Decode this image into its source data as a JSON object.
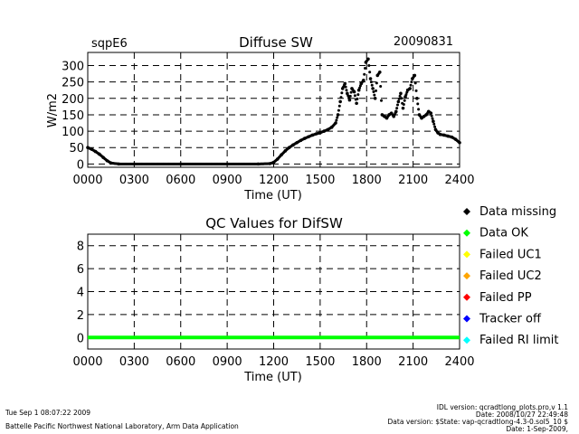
{
  "header": {
    "site": "sqpE6",
    "title": "Diffuse SW",
    "date": "20090831"
  },
  "footer": {
    "timestamp": "Tue Sep  1 08:07:22 2009",
    "lab": "Battelle Pacific Northwest National Laboratory, Arm Data Application",
    "idl_version": "IDL version: qcradtlong_plots.pro,v 1.1",
    "date_line": "Date: 2008/10/27 22:49:48",
    "data_version": "Data version: $State: vap-qcradtlong-4.3-0.sol5_10 $",
    "file_date": "Date: 1-Sep-2009,"
  },
  "legend": {
    "items": [
      {
        "label": "Data missing",
        "color": "#000000"
      },
      {
        "label": "Data OK",
        "color": "#00ff00"
      },
      {
        "label": "Failed UC1",
        "color": "#ffff00"
      },
      {
        "label": "Failed UC2",
        "color": "#ffa500"
      },
      {
        "label": "Failed PP",
        "color": "#ff0000"
      },
      {
        "label": "Tracker off",
        "color": "#0000ff"
      },
      {
        "label": "Failed RI limit",
        "color": "#00ffff"
      }
    ]
  },
  "chart_data": [
    {
      "type": "scatter",
      "title": "Diffuse SW",
      "xlabel": "Time (UT)",
      "ylabel": "W/m2",
      "xlim": [
        0,
        24
      ],
      "ylim": [
        -10,
        340
      ],
      "xticks": [
        0,
        3,
        6,
        9,
        12,
        15,
        18,
        21,
        24
      ],
      "xtick_labels": [
        "0000",
        "0300",
        "0600",
        "0900",
        "1200",
        "1500",
        "1800",
        "2100",
        "2400"
      ],
      "yticks": [
        0,
        50,
        100,
        150,
        200,
        250,
        300
      ],
      "ytick_labels": [
        "0",
        "50",
        "100",
        "150",
        "200",
        "250",
        "300"
      ],
      "grid": true,
      "series": [
        {
          "color": "#000000",
          "x": [
            0.0,
            0.25,
            0.5,
            0.75,
            1.0,
            1.25,
            1.5,
            2.0,
            3.0,
            6.0,
            9.0,
            11.0,
            11.75,
            12.0,
            12.25,
            12.5,
            12.75,
            13.0,
            13.25,
            13.5,
            13.75,
            14.0,
            14.25,
            14.5,
            14.75,
            15.0,
            15.25,
            15.5,
            15.75,
            16.0,
            16.15,
            16.3,
            16.45,
            16.6,
            16.75,
            16.9,
            17.05,
            17.2,
            17.35,
            17.5,
            17.65,
            17.8,
            17.95,
            18.1,
            18.25,
            18.4,
            18.55,
            18.7,
            18.85,
            19.0,
            19.15,
            19.3,
            19.45,
            19.6,
            19.75,
            19.9,
            20.05,
            20.2,
            20.35,
            20.5,
            20.65,
            20.8,
            20.95,
            21.1,
            21.25,
            21.4,
            21.55,
            21.7,
            21.85,
            22.0,
            22.15,
            22.3,
            22.45,
            22.6,
            22.75,
            23.0,
            23.25,
            23.5,
            23.75,
            24.0
          ],
          "y": [
            50,
            45,
            38,
            30,
            20,
            10,
            3,
            0,
            0,
            0,
            0,
            0,
            1,
            5,
            15,
            28,
            40,
            50,
            58,
            65,
            72,
            78,
            83,
            88,
            92,
            95,
            100,
            105,
            112,
            125,
            150,
            190,
            230,
            245,
            215,
            195,
            230,
            220,
            185,
            225,
            245,
            255,
            310,
            320,
            260,
            230,
            200,
            270,
            280,
            150,
            145,
            140,
            150,
            155,
            145,
            160,
            190,
            215,
            170,
            205,
            225,
            230,
            260,
            270,
            200,
            150,
            140,
            145,
            150,
            160,
            155,
            130,
            105,
            95,
            90,
            88,
            85,
            82,
            75,
            65
          ]
        }
      ]
    },
    {
      "type": "line",
      "title": "QC Values for DifSW",
      "xlabel": "Time (UT)",
      "ylabel": "",
      "xlim": [
        0,
        24
      ],
      "ylim": [
        -1,
        9
      ],
      "xticks": [
        0,
        3,
        6,
        9,
        12,
        15,
        18,
        21,
        24
      ],
      "xtick_labels": [
        "0000",
        "0300",
        "0600",
        "0900",
        "1200",
        "1500",
        "1800",
        "2100",
        "2400"
      ],
      "yticks": [
        0,
        2,
        4,
        6,
        8
      ],
      "ytick_labels": [
        "0",
        "2",
        "4",
        "6",
        "8"
      ],
      "grid": true,
      "series": [
        {
          "color": "#00ff00",
          "x": [
            0,
            24
          ],
          "y": [
            0,
            0
          ]
        }
      ]
    }
  ]
}
